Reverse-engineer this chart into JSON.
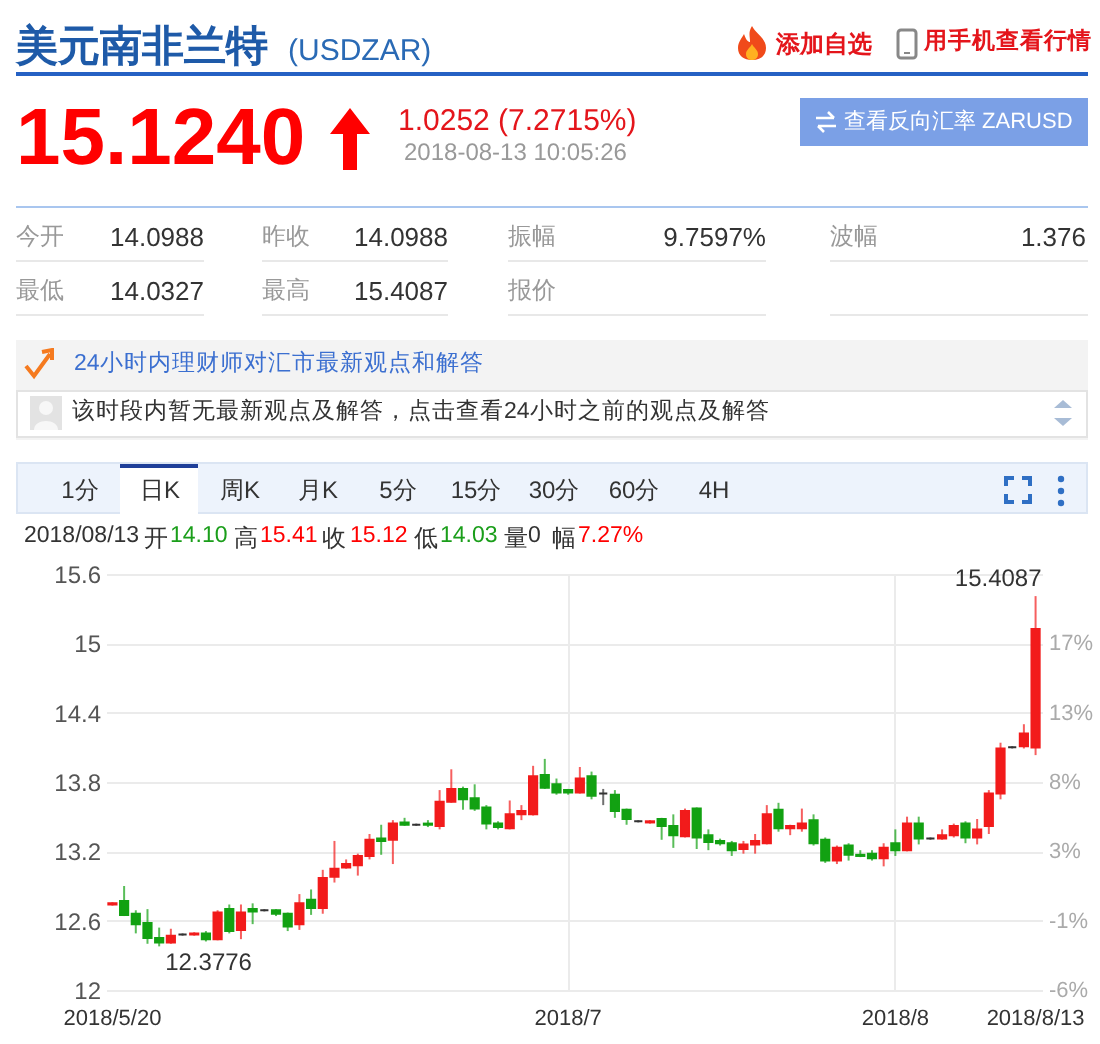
{
  "chart_data": {
    "type": "candlestick",
    "title": "美元南非兰特",
    "subtitle": "(USDZAR)",
    "categories": [
      "2018/5/20",
      null,
      null,
      null,
      null,
      null,
      null,
      null,
      null,
      null,
      null,
      null,
      null,
      null,
      null,
      null,
      null,
      null,
      null,
      null,
      null,
      null,
      null,
      null,
      null,
      null,
      null,
      null,
      null,
      null,
      null,
      null,
      null,
      null,
      null,
      null,
      null,
      null,
      null,
      "2018/7",
      null,
      null,
      null,
      null,
      null,
      null,
      null,
      null,
      null,
      null,
      null,
      null,
      null,
      null,
      null,
      null,
      null,
      null,
      null,
      null,
      null,
      null,
      null,
      null,
      null,
      null,
      null,
      "2018/8",
      null,
      null,
      null,
      null,
      null,
      null,
      null,
      null,
      null,
      null,
      null,
      "2018/8/13"
    ],
    "ohlc": [
      [
        12.74,
        12.76,
        12.73,
        12.75
      ],
      [
        12.77,
        12.9,
        12.64,
        12.65
      ],
      [
        12.66,
        12.69,
        12.49,
        12.57
      ],
      [
        12.58,
        12.7,
        12.4,
        12.45
      ],
      [
        12.45,
        12.54,
        12.3776,
        12.41
      ],
      [
        12.41,
        12.53,
        12.4,
        12.47
      ],
      [
        12.48,
        12.49,
        12.47,
        12.48
      ],
      [
        12.48,
        12.5,
        12.47,
        12.49
      ],
      [
        12.49,
        12.51,
        12.42,
        12.44
      ],
      [
        12.44,
        12.69,
        12.43,
        12.67
      ],
      [
        12.7,
        12.74,
        12.49,
        12.51
      ],
      [
        12.52,
        12.74,
        12.44,
        12.67
      ],
      [
        12.7,
        12.75,
        12.57,
        12.68
      ],
      [
        12.69,
        12.7,
        12.68,
        12.69
      ],
      [
        12.69,
        12.7,
        12.64,
        12.66
      ],
      [
        12.66,
        12.67,
        12.51,
        12.55
      ],
      [
        12.57,
        12.83,
        12.52,
        12.75
      ],
      [
        12.78,
        12.87,
        12.65,
        12.71
      ],
      [
        12.71,
        13.04,
        12.66,
        12.97
      ],
      [
        12.98,
        13.29,
        12.93,
        13.05
      ],
      [
        13.06,
        13.13,
        13.05,
        13.09
      ],
      [
        13.08,
        13.18,
        12.99,
        13.16
      ],
      [
        13.16,
        13.35,
        13.13,
        13.3
      ],
      [
        13.31,
        13.43,
        13.17,
        13.29
      ],
      [
        13.3,
        13.47,
        13.09,
        13.44
      ],
      [
        13.45,
        13.49,
        13.42,
        13.43
      ],
      [
        13.43,
        13.44,
        13.42,
        13.43
      ],
      [
        13.44,
        13.47,
        13.41,
        13.43
      ],
      [
        13.42,
        13.73,
        13.39,
        13.63
      ],
      [
        13.63,
        13.91,
        13.62,
        13.74
      ],
      [
        13.74,
        13.76,
        13.56,
        13.65
      ],
      [
        13.66,
        13.78,
        13.55,
        13.57
      ],
      [
        13.58,
        13.6,
        13.39,
        13.44
      ],
      [
        13.44,
        13.46,
        13.39,
        13.41
      ],
      [
        13.4,
        13.64,
        13.39,
        13.52
      ],
      [
        13.52,
        13.6,
        13.47,
        13.55
      ],
      [
        13.52,
        13.94,
        13.51,
        13.85
      ],
      [
        13.86,
        14.0,
        13.74,
        13.75
      ],
      [
        13.78,
        13.83,
        13.69,
        13.71
      ],
      [
        13.73,
        13.74,
        13.69,
        13.71
      ],
      [
        13.71,
        13.93,
        13.7,
        13.83
      ],
      [
        13.85,
        13.89,
        13.65,
        13.68
      ],
      [
        13.7,
        13.74,
        13.6,
        13.7
      ],
      [
        13.69,
        13.73,
        13.49,
        13.55
      ],
      [
        13.56,
        13.57,
        13.43,
        13.48
      ],
      [
        13.46,
        13.47,
        13.45,
        13.46
      ],
      [
        13.45,
        13.47,
        13.44,
        13.46
      ],
      [
        13.48,
        13.49,
        13.3,
        13.42
      ],
      [
        13.42,
        13.52,
        13.23,
        13.34
      ],
      [
        13.33,
        13.57,
        13.32,
        13.55
      ],
      [
        13.57,
        13.58,
        13.22,
        13.32
      ],
      [
        13.34,
        13.39,
        13.21,
        13.28
      ],
      [
        13.29,
        13.31,
        13.25,
        13.27
      ],
      [
        13.27,
        13.29,
        13.16,
        13.21
      ],
      [
        13.22,
        13.29,
        13.18,
        13.26
      ],
      [
        13.26,
        13.35,
        13.18,
        13.29
      ],
      [
        13.27,
        13.6,
        13.26,
        13.52
      ],
      [
        13.56,
        13.62,
        13.37,
        13.4
      ],
      [
        13.4,
        13.43,
        13.34,
        13.42
      ],
      [
        13.4,
        13.57,
        13.37,
        13.44
      ],
      [
        13.47,
        13.52,
        13.25,
        13.27
      ],
      [
        13.3,
        13.32,
        13.1,
        13.12
      ],
      [
        13.12,
        13.25,
        13.09,
        13.23
      ],
      [
        13.25,
        13.27,
        13.12,
        13.17
      ],
      [
        13.17,
        13.21,
        13.15,
        13.16
      ],
      [
        13.18,
        13.21,
        13.12,
        13.14
      ],
      [
        13.14,
        13.27,
        13.07,
        13.23
      ],
      [
        13.27,
        13.39,
        13.16,
        13.21
      ],
      [
        13.21,
        13.5,
        13.2,
        13.44
      ],
      [
        13.44,
        13.5,
        13.26,
        13.31
      ],
      [
        13.31,
        13.32,
        13.3,
        13.31
      ],
      [
        13.31,
        13.39,
        13.3,
        13.34
      ],
      [
        13.34,
        13.44,
        13.32,
        13.42
      ],
      [
        13.44,
        13.46,
        13.27,
        13.32
      ],
      [
        13.32,
        13.48,
        13.26,
        13.39
      ],
      [
        13.42,
        13.73,
        13.35,
        13.7
      ],
      [
        13.7,
        14.14,
        13.65,
        14.09
      ],
      [
        14.1,
        14.11,
        14.09,
        14.1
      ],
      [
        14.11,
        14.3,
        14.09,
        14.22
      ],
      [
        14.0988,
        15.4087,
        14.0327,
        15.124
      ]
    ],
    "colors": [
      "#f21b1b",
      "#12a112",
      "#12a112",
      "#12a112",
      "#12a112",
      "#f21b1b",
      "#333333",
      "#f21b1b",
      "#12a112",
      "#f21b1b",
      "#12a112",
      "#f21b1b",
      "#12a112",
      "#333333",
      "#12a112",
      "#12a112",
      "#f21b1b",
      "#12a112",
      "#f21b1b",
      "#f21b1b",
      "#f21b1b",
      "#f21b1b",
      "#f21b1b",
      "#12a112",
      "#f21b1b",
      "#12a112",
      "#333333",
      "#12a112",
      "#f21b1b",
      "#f21b1b",
      "#12a112",
      "#12a112",
      "#12a112",
      "#12a112",
      "#f21b1b",
      "#f21b1b",
      "#f21b1b",
      "#12a112",
      "#12a112",
      "#12a112",
      "#f21b1b",
      "#12a112",
      "#333333",
      "#12a112",
      "#12a112",
      "#333333",
      "#f21b1b",
      "#12a112",
      "#12a112",
      "#f21b1b",
      "#12a112",
      "#12a112",
      "#12a112",
      "#12a112",
      "#f21b1b",
      "#f21b1b",
      "#f21b1b",
      "#12a112",
      "#f21b1b",
      "#f21b1b",
      "#12a112",
      "#12a112",
      "#f21b1b",
      "#12a112",
      "#12a112",
      "#12a112",
      "#f21b1b",
      "#12a112",
      "#f21b1b",
      "#12a112",
      "#333333",
      "#f21b1b",
      "#f21b1b",
      "#12a112",
      "#f21b1b",
      "#f21b1b",
      "#f21b1b",
      "#333333",
      "#f21b1b",
      "#f21b1b"
    ],
    "ylim": [
      12,
      15.6
    ],
    "yticks": [
      12,
      12.6,
      13.2,
      13.8,
      14.4,
      15,
      15.6
    ],
    "y2lim": [
      -6.1,
      22.07
    ],
    "y2ticks": [
      {
        "value": -6.1,
        "label": "-6%"
      },
      {
        "value": -1.41,
        "label": "-1%"
      },
      {
        "value": 3.29,
        "label": "3%"
      },
      {
        "value": 7.98,
        "label": "8%"
      },
      {
        "value": 12.68,
        "label": "13%"
      },
      {
        "value": 17.37,
        "label": "17%"
      }
    ],
    "grid": true,
    "annotations": [
      "添加自选",
      "用手机查看行情",
      "15.1240",
      "1.0252 (7.2715%)",
      "2018-08-13 10:05:26",
      "查看反向汇率 ZARUSD",
      "今开",
      "14.0988",
      "昨收",
      "14.0988",
      "振幅",
      "9.7597%",
      "波幅",
      "1.376",
      "最低",
      "14.0327",
      "最高",
      "15.4087",
      "报价",
      "24小时内理财师对汇市最新观点和解答",
      "该时段内暂无最新观点及解答，点击查看24小时之前的观点及解答",
      "1分",
      "日K",
      "周K",
      "月K",
      "5分",
      "15分",
      "30分",
      "60分",
      "4H",
      "2018/08/13",
      "开",
      "14.10",
      "高",
      "15.41",
      "收",
      "15.12",
      "低",
      "14.03",
      "量",
      "0",
      "幅",
      "7.27%",
      {
        "text": "15.4087",
        "x": "2018/8/13",
        "y": 15.4087
      },
      {
        "text": "12.3776",
        "y": 12.3776
      }
    ]
  }
}
